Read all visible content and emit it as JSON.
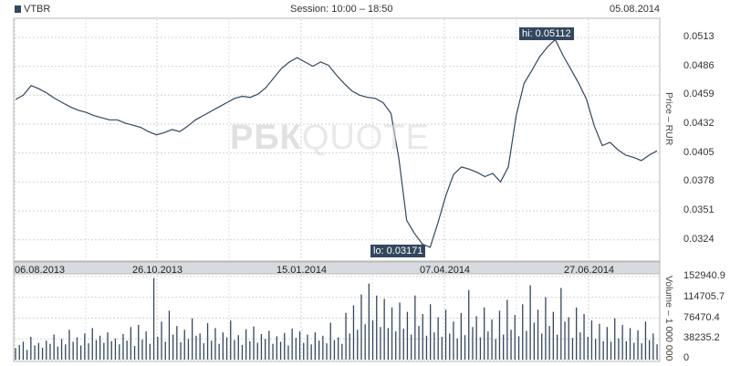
{
  "header": {
    "ticker": "VTBR",
    "session": "Session: 10:00 – 18:50",
    "date": "05.08.2014"
  },
  "watermark": {
    "bold": "РБК",
    "thin": "QUOTE"
  },
  "price_axis_label": "Price – RUR",
  "volume_axis_label": "Volume – 1 000 000",
  "colors": {
    "line": "#33475f",
    "bars": "#33475f",
    "axis_band": "#d7dbe0",
    "grid": "#cfcfcf"
  },
  "annotations": {
    "hi": "hi: 0.05112",
    "lo": "lo: 0.03171"
  },
  "chart_data": [
    {
      "type": "line",
      "title": "",
      "ylabel": "Price – RUR",
      "ylim": [
        0.0305,
        0.053
      ],
      "y_ticks": [
        "0.0513",
        "0.0486",
        "0.0459",
        "0.0432",
        "0.0405",
        "0.0378",
        "0.0351",
        "0.0324"
      ],
      "x_tick_labels": [
        "06.08.2013",
        "26.10.2013",
        "15.01.2014",
        "07.04.2014",
        "27.06.2014"
      ],
      "series": [
        {
          "values": [
            0.0455,
            0.0459,
            0.0468,
            0.0465,
            0.0461,
            0.0456,
            0.0452,
            0.0448,
            0.0445,
            0.0443,
            0.044,
            0.0438,
            0.0436,
            0.0436,
            0.0433,
            0.0431,
            0.0429,
            0.0425,
            0.0422,
            0.0424,
            0.0427,
            0.0425,
            0.043,
            0.0436,
            0.044,
            0.0444,
            0.0448,
            0.0452,
            0.0456,
            0.0458,
            0.0457,
            0.046,
            0.0466,
            0.0475,
            0.0484,
            0.049,
            0.0494,
            0.049,
            0.0486,
            0.049,
            0.0487,
            0.0478,
            0.047,
            0.0463,
            0.0459,
            0.0457,
            0.0456,
            0.0452,
            0.0442,
            0.04,
            0.0342,
            0.033,
            0.032,
            0.0317,
            0.034,
            0.0365,
            0.0385,
            0.0392,
            0.039,
            0.0387,
            0.0383,
            0.0386,
            0.0378,
            0.0392,
            0.044,
            0.047,
            0.0482,
            0.0495,
            0.0504,
            0.0511,
            0.0496,
            0.0483,
            0.047,
            0.0455,
            0.043,
            0.0412,
            0.0415,
            0.0408,
            0.0403,
            0.0401,
            0.0398,
            0.0403,
            0.0407
          ]
        }
      ],
      "hi": 0.05112,
      "lo": 0.03171
    },
    {
      "type": "bar",
      "title": "",
      "ylabel": "Volume – 1 000 000",
      "ylim": [
        0,
        152940.9
      ],
      "y_ticks": [
        "152940.9",
        "114705.7",
        "76470.4",
        "38235.2",
        "0"
      ],
      "values": [
        21000,
        27000,
        33000,
        18000,
        42000,
        26000,
        31000,
        22000,
        35000,
        29000,
        46000,
        24000,
        38000,
        28000,
        55000,
        33000,
        41000,
        26000,
        48000,
        30000,
        58000,
        36000,
        44000,
        31000,
        50000,
        34000,
        39000,
        28000,
        47000,
        35000,
        60000,
        25000,
        64000,
        37000,
        52000,
        29000,
        150000,
        42000,
        70000,
        33000,
        90000,
        46000,
        62000,
        32000,
        55000,
        38000,
        76000,
        44000,
        48000,
        30000,
        67000,
        35000,
        58000,
        29000,
        50000,
        41000,
        72000,
        36000,
        45000,
        27000,
        56000,
        34000,
        61000,
        31000,
        47000,
        38000,
        53000,
        29000,
        43000,
        33000,
        49000,
        26000,
        57000,
        40000,
        52000,
        31000,
        46000,
        28000,
        50000,
        35000,
        44000,
        30000,
        68000,
        36000,
        41000,
        29000,
        86000,
        48000,
        100000,
        55000,
        120000,
        65000,
        140000,
        72000,
        118000,
        60000,
        112000,
        58000,
        96000,
        52000,
        105000,
        57000,
        88000,
        46000,
        118000,
        62000,
        84000,
        44000,
        102000,
        50000,
        78000,
        42000,
        92000,
        48000,
        70000,
        39000,
        86000,
        45000,
        128000,
        60000,
        80000,
        41000,
        96000,
        52000,
        74000,
        38000,
        90000,
        46000,
        110000,
        55000,
        82000,
        43000,
        102000,
        53000,
        137000,
        68000,
        92000,
        48000,
        115000,
        62000,
        88000,
        46000,
        132000,
        70000,
        78000,
        40000,
        96000,
        50000,
        84000,
        42000,
        72000,
        38000,
        66000,
        34000,
        60000,
        33000,
        76000,
        39000,
        64000,
        34000,
        58000,
        31000,
        54000,
        30000,
        70000,
        36000,
        48000,
        28000
      ]
    }
  ]
}
